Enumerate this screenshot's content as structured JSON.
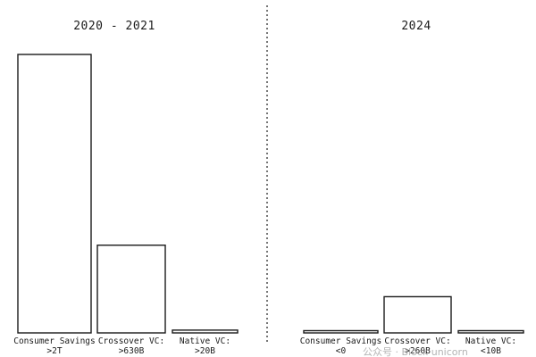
{
  "chart_data": [
    {
      "type": "bar",
      "title": "2020 - 2021",
      "categories": [
        [
          "Consumer Savings",
          ">2T"
        ],
        [
          "Crossover VC:",
          ">630B"
        ],
        [
          "Native VC:",
          ">20B"
        ]
      ],
      "values": [
        2000,
        630,
        20
      ],
      "ylim": [
        0,
        2000
      ],
      "grid": false
    },
    {
      "type": "bar",
      "title": "2024",
      "categories": [
        [
          "Consumer Savings",
          "<0"
        ],
        [
          "Crossover VC:",
          ">260B"
        ],
        [
          "Native VC:",
          "<10B"
        ]
      ],
      "values": [
        0,
        260,
        10
      ],
      "ylim": [
        0,
        2000
      ],
      "grid": false
    }
  ],
  "watermark": {
    "text": "公众号 · Block unicorn"
  }
}
